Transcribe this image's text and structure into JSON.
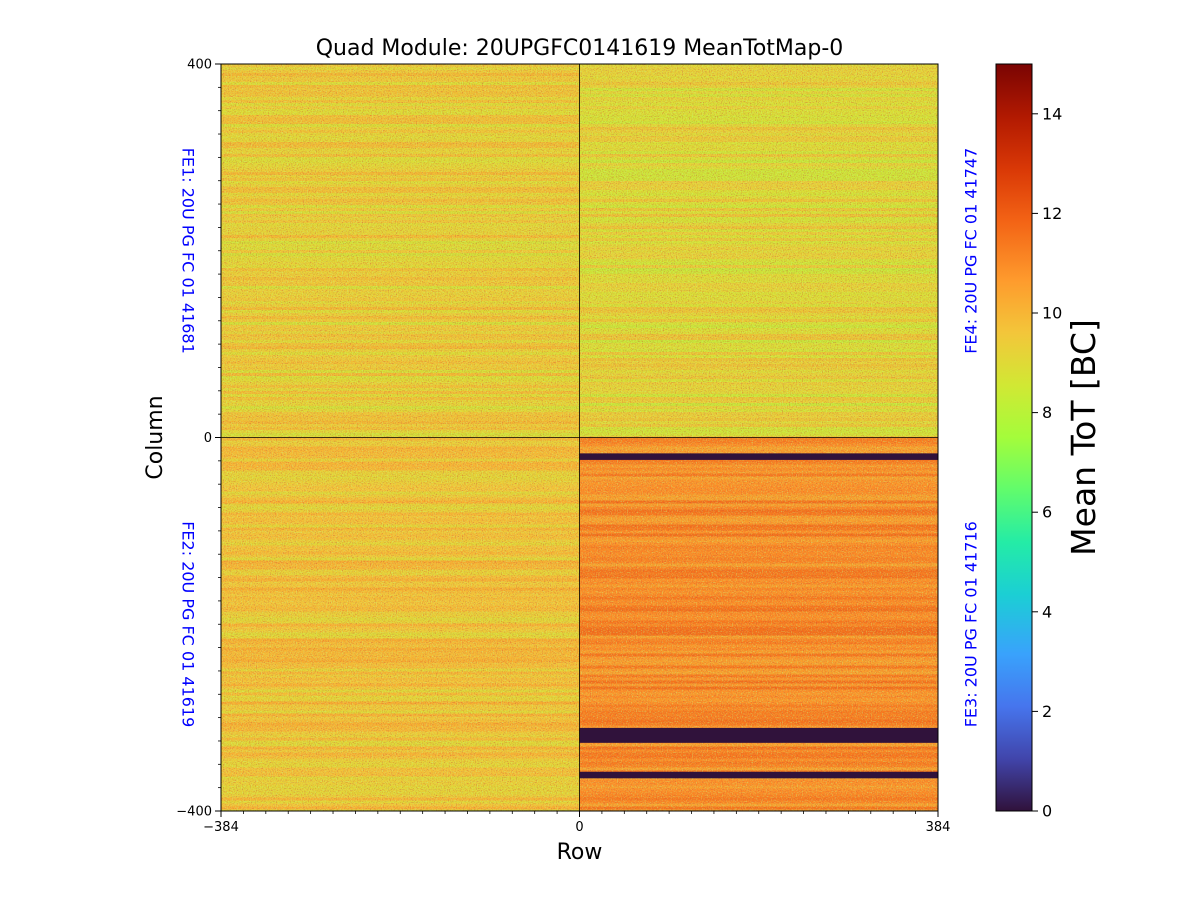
{
  "chart_data": {
    "type": "heatmap",
    "title": "Quad Module: 20UPGFC0141619 MeanTotMap-0",
    "xlabel": "Row",
    "ylabel": "Column",
    "xlim": [
      -384,
      384
    ],
    "ylim": [
      -400,
      400
    ],
    "x_ticks": [
      {
        "value": -384,
        "label": "−384"
      },
      {
        "value": 0,
        "label": "0"
      },
      {
        "value": 384,
        "label": "384"
      }
    ],
    "y_ticks": [
      {
        "value": 400,
        "label": "400"
      },
      {
        "value": 0,
        "label": "0"
      },
      {
        "value": -400,
        "label": "−400"
      }
    ],
    "colorbar": {
      "label": "Mean ToT [BC]",
      "colormap": "turbo",
      "range": [
        0,
        15
      ],
      "ticks": [
        0,
        2,
        4,
        6,
        8,
        10,
        12,
        14
      ]
    },
    "quadrants": [
      {
        "id": "FE1",
        "label": "FE1: 20U PG FC 01 41681",
        "x_range": [
          -384,
          0
        ],
        "y_range": [
          0,
          400
        ],
        "typical_mean_tot": 9.3
      },
      {
        "id": "FE4",
        "label": "FE4: 20U PG FC 01 41747",
        "x_range": [
          0,
          384
        ],
        "y_range": [
          0,
          400
        ],
        "typical_mean_tot": 9.0
      },
      {
        "id": "FE2",
        "label": "FE2: 20U PG FC 01 41619",
        "x_range": [
          -384,
          0
        ],
        "y_range": [
          -400,
          0
        ],
        "typical_mean_tot": 9.6
      },
      {
        "id": "FE3",
        "label": "FE3: 20U PG FC 01 41716",
        "x_range": [
          0,
          384
        ],
        "y_range": [
          -400,
          0
        ],
        "typical_mean_tot": 11.0
      }
    ],
    "dead_regions": [
      {
        "chip": "FE3",
        "x_range": [
          0,
          384
        ],
        "y_range": [
          -24,
          -17
        ],
        "value": 0
      },
      {
        "chip": "FE3",
        "x_range": [
          0,
          384
        ],
        "y_range": [
          -327,
          -311
        ],
        "value": 0
      },
      {
        "chip": "FE3",
        "x_range": [
          0,
          384
        ],
        "y_range": [
          -365,
          -358
        ],
        "value": 0
      }
    ],
    "fe_label_color": "#0000ff"
  }
}
